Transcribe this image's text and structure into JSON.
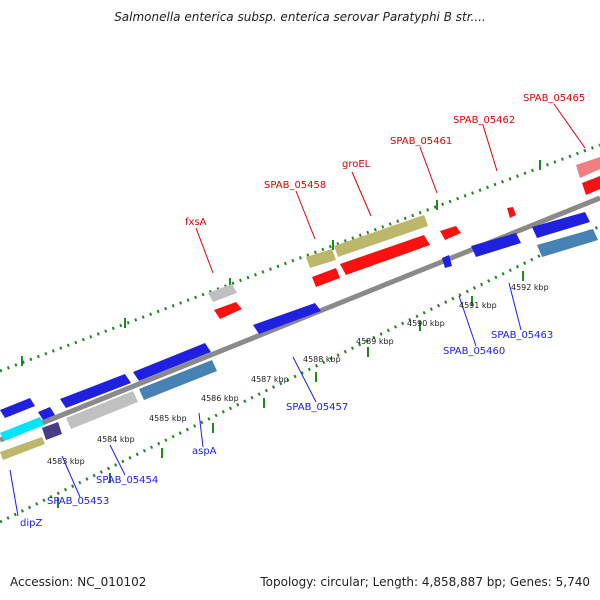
{
  "title": "Salmonella enterica subsp. enterica serovar Paratyphi B str....",
  "footer": {
    "accession": "Accession: NC_010102",
    "summary": "Topology: circular; Length: 4,858,887 bp; Genes: 5,740"
  },
  "ruler_labels": [
    "4583 kbp",
    "4584 kbp",
    "4585 kbp",
    "4586 kbp",
    "4587 kbp",
    "4588 kbp",
    "4589 kbp",
    "4590 kbp",
    "4591 kbp",
    "4592 kbp"
  ],
  "gene_labels_top": [
    "fxsA",
    "SPAB_05458",
    "groEL",
    "SPAB_05461",
    "SPAB_05462",
    "SPAB_05465"
  ],
  "gene_labels_bottom": [
    "dipZ",
    "SPAB_05453",
    "SPAB_05454",
    "aspA",
    "SPAB_05457",
    "SPAB_05460",
    "SPAB_05463"
  ],
  "colors": {
    "label_top": "#e00000",
    "label_bottom": "#1a1aff",
    "backbone": "#8a8a8a",
    "ticks": "#1d8a1d",
    "blue": "#2020e0",
    "red": "#ff1010",
    "olive": "#bdb76b",
    "steel": "#4682b4",
    "silver": "#c0c0c0",
    "cyan": "#00e5ff",
    "purple": "#483d8b",
    "pink": "#f08080"
  }
}
